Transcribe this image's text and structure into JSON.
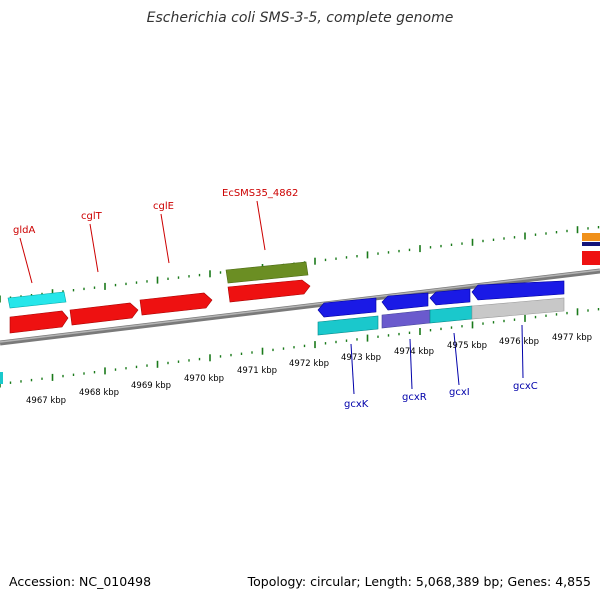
{
  "title": "Escherichia coli SMS-3-5, complete genome",
  "footer": {
    "accession": "Accession: NC_010498",
    "topology": "Topology: circular; Length: 5,068,389 bp; Genes: 4,855"
  },
  "colors": {
    "forward_label": "#cc0000",
    "reverse_label": "#0000aa",
    "tick": "#1a7a1a",
    "backbone": "#8c8c8c"
  },
  "kbp_labels": [
    "4967 kbp",
    "4968 kbp",
    "4969 kbp",
    "4970 kbp",
    "4971 kbp",
    "4972 kbp",
    "4973 kbp",
    "4974 kbp",
    "4975 kbp",
    "4976 kbp",
    "4977 kbp"
  ],
  "forward_gene_labels": [
    "gldA",
    "cglT",
    "cglE",
    "EcSMS35_4862"
  ],
  "reverse_gene_labels": [
    "gcxK",
    "gcxR",
    "gcxI",
    "gcxC"
  ]
}
